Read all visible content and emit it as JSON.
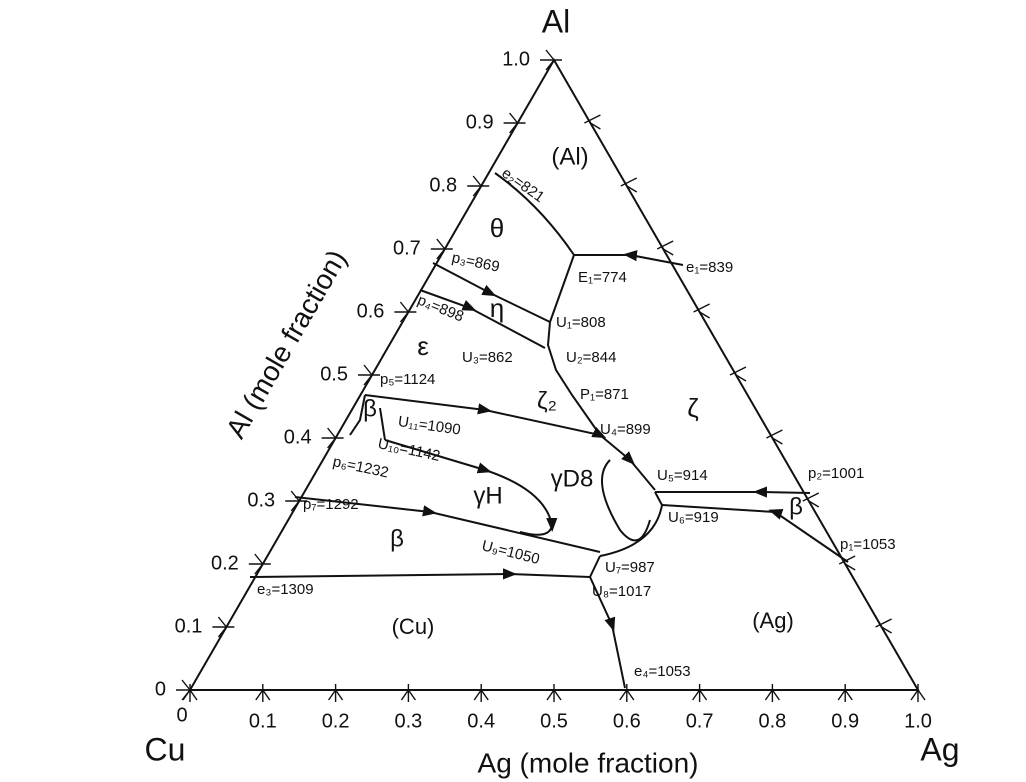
{
  "corners": {
    "top": "Al",
    "left": "Cu",
    "right": "Ag"
  },
  "axes": {
    "left": {
      "label": "Al (mole fraction)",
      "ticks": [
        "0",
        "0.1",
        "0.2",
        "0.3",
        "0.4",
        "0.5",
        "0.6",
        "0.7",
        "0.8",
        "0.9",
        "1.0"
      ]
    },
    "bottom": {
      "label": "Ag (mole fraction)",
      "ticks": [
        "0",
        "0.1",
        "0.2",
        "0.3",
        "0.4",
        "0.5",
        "0.6",
        "0.7",
        "0.8",
        "0.9",
        "1.0"
      ]
    }
  },
  "regions": [
    "(Al)",
    "θ",
    "η",
    "ε",
    "ζ₂",
    "ζ",
    "β",
    "γD8",
    "γH",
    "β",
    "β",
    "(Cu)",
    "(Ag)"
  ],
  "points": [
    "e₂=821",
    "E₁=774",
    "e₁=839",
    "p₃=869",
    "p₄=898",
    "U₁=808",
    "U₃=862",
    "U₂=844",
    "p₅=1124",
    "P₁=871",
    "U₁₁=1090",
    "U₄=899",
    "U₁₀=1142",
    "p₆=1232",
    "U₅=914",
    "p₂=1001",
    "U₆=919",
    "p₇=1292",
    "U₉=1050",
    "p₁=1053",
    "U₇=987",
    "U₈=1017",
    "e₃=1309",
    "e₄=1053"
  ]
}
